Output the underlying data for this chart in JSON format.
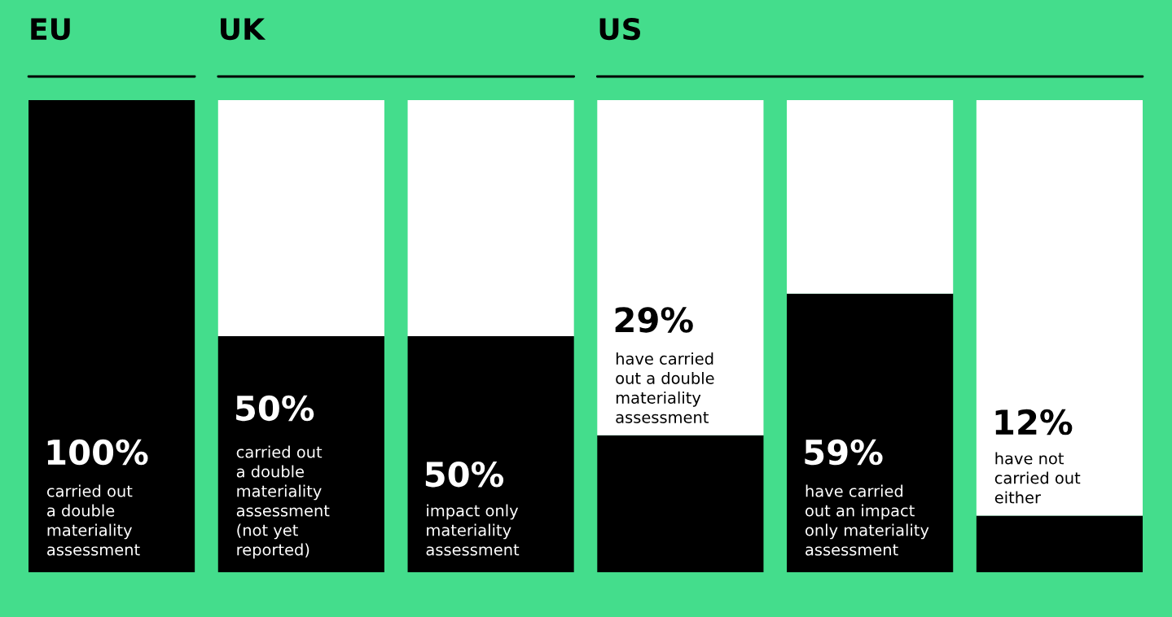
{
  "chart_data": {
    "type": "bar",
    "stacked": true,
    "categories": [
      "EU",
      "UK",
      null,
      "US",
      null,
      null
    ],
    "series": [
      {
        "color": "#000000",
        "values": [
          100,
          50,
          50,
          29,
          59,
          12
        ],
        "value_labels": [
          "100%",
          "50%",
          "50%",
          "29%",
          "59%",
          "12%"
        ]
      },
      {
        "color": "#ffffff",
        "values": [
          0,
          50,
          50,
          71,
          41,
          88
        ]
      }
    ],
    "ylim": [
      0,
      100
    ],
    "tick_labels": "x",
    "annotations": [
      "carried out\na double\nmateriality\nassessment",
      "carried out\na double\nmateriality\nassessment\n(not yet\nreported)",
      "impact only\nmateriality\nassessment",
      "have carried\nout a double\nmateriality\nassessment",
      "have carried\nout an impact\nonly materiality\nassessment",
      "have not\ncarried out\neither"
    ]
  }
}
